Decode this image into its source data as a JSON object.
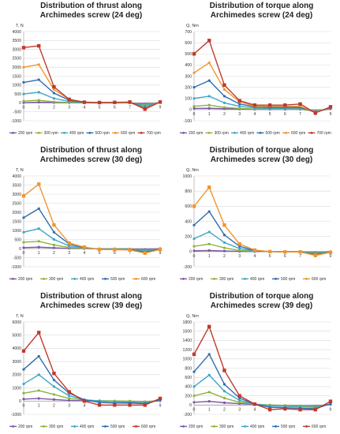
{
  "chart_data": [
    {
      "type": "line",
      "title": [
        "Distribution of thrust along",
        "Archimedes screw (24 deg)"
      ],
      "ylabel": "T, N",
      "xlabel": "",
      "x": [
        0,
        1,
        2,
        3,
        4,
        5,
        6,
        7,
        8,
        9
      ],
      "ylim": [
        -1000,
        4000
      ],
      "yticks": [
        -1000,
        -500,
        0,
        500,
        1000,
        1500,
        2000,
        2500,
        3000,
        3500,
        4000
      ],
      "grid": true,
      "legend": "bottom",
      "series": [
        {
          "name": "200 rpm",
          "color": "#7e57a6",
          "values": [
            10,
            40,
            20,
            5,
            0,
            0,
            0,
            0,
            -40,
            10
          ]
        },
        {
          "name": "300 rpm",
          "color": "#8cb43c",
          "values": [
            100,
            150,
            60,
            20,
            5,
            0,
            0,
            0,
            -80,
            20
          ]
        },
        {
          "name": "400 rpm",
          "color": "#3fa6c9",
          "values": [
            500,
            600,
            250,
            80,
            20,
            10,
            10,
            20,
            -150,
            30
          ]
        },
        {
          "name": "500 rpm",
          "color": "#2e6db0",
          "values": [
            1150,
            1300,
            550,
            150,
            30,
            20,
            20,
            20,
            -250,
            40
          ]
        },
        {
          "name": "600 rpm",
          "color": "#f0952e",
          "values": [
            2000,
            2150,
            750,
            200,
            40,
            20,
            20,
            20,
            -300,
            50
          ]
        },
        {
          "name": "700 rpm",
          "color": "#c0392b",
          "values": [
            3100,
            3200,
            900,
            200,
            40,
            20,
            30,
            50,
            -350,
            50
          ]
        }
      ]
    },
    {
      "type": "line",
      "title": [
        "Distribution of torque along",
        "Archimedes screw (24 deg)"
      ],
      "ylabel": "Q, Nm",
      "xlabel": "",
      "x": [
        0,
        1,
        2,
        3,
        4,
        5,
        6,
        7,
        8,
        9
      ],
      "ylim": [
        -100,
        700
      ],
      "yticks": [
        -100,
        0,
        100,
        200,
        300,
        400,
        500,
        600,
        700
      ],
      "grid": true,
      "legend": "bottom",
      "series": [
        {
          "name": "200 rpm",
          "color": "#7e57a6",
          "values": [
            10,
            12,
            8,
            4,
            2,
            2,
            2,
            2,
            -10,
            5
          ]
        },
        {
          "name": "300 rpm",
          "color": "#8cb43c",
          "values": [
            30,
            40,
            20,
            10,
            5,
            5,
            5,
            5,
            -15,
            8
          ]
        },
        {
          "name": "400 rpm",
          "color": "#3fa6c9",
          "values": [
            100,
            120,
            60,
            30,
            15,
            12,
            12,
            15,
            -20,
            10
          ]
        },
        {
          "name": "500 rpm",
          "color": "#2e6db0",
          "values": [
            200,
            260,
            120,
            50,
            25,
            20,
            20,
            20,
            -25,
            15
          ]
        },
        {
          "name": "600 rpm",
          "color": "#f0952e",
          "values": [
            330,
            420,
            180,
            70,
            30,
            30,
            30,
            30,
            -25,
            20
          ]
        },
        {
          "name": "700 rpm",
          "color": "#c0392b",
          "values": [
            500,
            620,
            220,
            80,
            40,
            40,
            40,
            50,
            -30,
            25
          ]
        }
      ]
    },
    {
      "type": "line",
      "title": [
        "Distribution of thrust along",
        "Archimedes screw (30 deg)"
      ],
      "ylabel": "T, N",
      "xlabel": "",
      "x": [
        0,
        1,
        2,
        3,
        4,
        5,
        6,
        7,
        8,
        9
      ],
      "ylim": [
        -1000,
        4000
      ],
      "yticks": [
        -1000,
        -500,
        0,
        500,
        1000,
        1500,
        2000,
        2500,
        3000,
        3500,
        4000
      ],
      "grid": true,
      "legend": "bottom",
      "series": [
        {
          "name": "200 rpm",
          "color": "#7e57a6",
          "values": [
            50,
            80,
            40,
            10,
            0,
            -10,
            -10,
            -20,
            -50,
            0
          ]
        },
        {
          "name": "300 rpm",
          "color": "#8cb43c",
          "values": [
            350,
            400,
            200,
            60,
            10,
            -20,
            -20,
            -30,
            -100,
            -20
          ]
        },
        {
          "name": "400 rpm",
          "color": "#3fa6c9",
          "values": [
            900,
            1100,
            500,
            150,
            40,
            -30,
            -40,
            -50,
            -150,
            -30
          ]
        },
        {
          "name": "500 rpm",
          "color": "#2e6db0",
          "values": [
            1700,
            2200,
            900,
            250,
            60,
            -40,
            -50,
            -60,
            -200,
            -40
          ]
        },
        {
          "name": "600 rpm",
          "color": "#f0952e",
          "values": [
            2900,
            3550,
            1300,
            300,
            80,
            -50,
            -60,
            -80,
            -250,
            -50
          ]
        }
      ]
    },
    {
      "type": "line",
      "title": [
        "Distribution of torque along",
        "Archimedes screw (30 deg)"
      ],
      "ylabel": "Q, Nm",
      "xlabel": "",
      "x": [
        0,
        1,
        2,
        3,
        4,
        5,
        6,
        7,
        8,
        9
      ],
      "ylim": [
        -200,
        1000
      ],
      "yticks": [
        -200,
        0,
        200,
        400,
        600,
        800,
        1000
      ],
      "grid": true,
      "legend": "bottom",
      "series": [
        {
          "name": "200 rpm",
          "color": "#7e57a6",
          "values": [
            10,
            15,
            8,
            3,
            0,
            0,
            0,
            0,
            -10,
            0
          ]
        },
        {
          "name": "300 rpm",
          "color": "#8cb43c",
          "values": [
            70,
            100,
            50,
            15,
            5,
            0,
            0,
            0,
            -20,
            -5
          ]
        },
        {
          "name": "400 rpm",
          "color": "#3fa6c9",
          "values": [
            170,
            260,
            120,
            40,
            10,
            0,
            -5,
            -5,
            -30,
            -10
          ]
        },
        {
          "name": "500 rpm",
          "color": "#2e6db0",
          "values": [
            350,
            530,
            220,
            70,
            15,
            0,
            -5,
            -5,
            -40,
            -10
          ]
        },
        {
          "name": "600 rpm",
          "color": "#f0952e",
          "values": [
            600,
            850,
            350,
            100,
            20,
            0,
            -5,
            -5,
            -50,
            -10
          ]
        }
      ]
    },
    {
      "type": "line",
      "title": [
        "Distribution of thrust along",
        "Archimedes screw (39 deg)"
      ],
      "ylabel": "T, N",
      "xlabel": "",
      "x": [
        0,
        1,
        2,
        3,
        4,
        5,
        6,
        7,
        8,
        9
      ],
      "ylim": [
        -1000,
        6000
      ],
      "yticks": [
        -1000,
        0,
        1000,
        2000,
        3000,
        4000,
        5000,
        6000
      ],
      "grid": true,
      "legend": "bottom",
      "series": [
        {
          "name": "200 rpm",
          "color": "#7e57a6",
          "values": [
            150,
            200,
            120,
            50,
            20,
            0,
            -20,
            -30,
            -50,
            20
          ]
        },
        {
          "name": "300 rpm",
          "color": "#8cb43c",
          "values": [
            600,
            800,
            500,
            200,
            80,
            30,
            10,
            0,
            -50,
            50
          ]
        },
        {
          "name": "400 rpm",
          "color": "#3fa6c9",
          "values": [
            1300,
            2000,
            1100,
            400,
            100,
            0,
            -50,
            -100,
            -150,
            50
          ]
        },
        {
          "name": "500 rpm",
          "color": "#2e6db0",
          "values": [
            2400,
            3400,
            1600,
            600,
            100,
            -100,
            -150,
            -150,
            -200,
            100
          ]
        },
        {
          "name": "600 rpm",
          "color": "#c0392b",
          "values": [
            3800,
            5200,
            2100,
            700,
            0,
            -300,
            -300,
            -300,
            -300,
            200
          ]
        }
      ]
    },
    {
      "type": "line",
      "title": [
        "Distribution of torque along",
        "Archimedes screw (39 deg)"
      ],
      "ylabel": "Q, Nm",
      "xlabel": "",
      "x": [
        0,
        1,
        2,
        3,
        4,
        5,
        6,
        7,
        8,
        9
      ],
      "ylim": [
        -200,
        1800
      ],
      "yticks": [
        -200,
        0,
        200,
        400,
        600,
        800,
        1000,
        1200,
        1400,
        1600,
        1800
      ],
      "grid": true,
      "legend": "bottom",
      "series": [
        {
          "name": "200 rpm",
          "color": "#7e57a6",
          "values": [
            60,
            80,
            50,
            30,
            15,
            0,
            -10,
            -20,
            -20,
            10
          ]
        },
        {
          "name": "300 rpm",
          "color": "#8cb43c",
          "values": [
            200,
            280,
            150,
            60,
            20,
            0,
            -10,
            -20,
            -30,
            20
          ]
        },
        {
          "name": "400 rpm",
          "color": "#3fa6c9",
          "values": [
            400,
            650,
            300,
            100,
            20,
            -20,
            -30,
            -40,
            -50,
            20
          ]
        },
        {
          "name": "500 rpm",
          "color": "#2e6db0",
          "values": [
            720,
            1100,
            450,
            150,
            20,
            -50,
            -60,
            -70,
            -80,
            30
          ]
        },
        {
          "name": "600 rpm",
          "color": "#c0392b",
          "values": [
            1100,
            1700,
            750,
            200,
            20,
            -100,
            -80,
            -100,
            -100,
            80
          ]
        }
      ]
    }
  ]
}
